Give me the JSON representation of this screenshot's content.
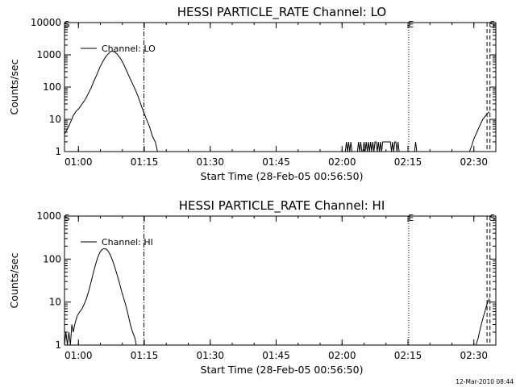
{
  "chart_data": [
    {
      "type": "line",
      "title": "HESSI PARTICLE_RATE Channel: LO",
      "xlabel": "Start Time (28-Feb-05 00:56:50)",
      "ylabel": "Counts/sec",
      "yscale": "log",
      "ylim": [
        1,
        10000
      ],
      "xlim": [
        "00:56:50",
        "02:35:00"
      ],
      "x_ticks": [
        "01:00",
        "01:15",
        "01:30",
        "01:45",
        "02:00",
        "02:15",
        "02:30"
      ],
      "y_ticks": [
        "1",
        "10",
        "100",
        "1000",
        "10000"
      ],
      "legend": "top-left",
      "series": [
        {
          "name": "Channel: LO",
          "color": "#000000",
          "segments": [
            {
              "x": [
                "00:56:50",
                "00:57:30",
                "00:58:10",
                "00:58:50",
                "00:59:30",
                "01:00:10",
                "01:00:50",
                "01:01:30",
                "01:02:10",
                "01:02:50",
                "01:03:30",
                "01:04:10",
                "01:04:50",
                "01:05:30",
                "01:06:10",
                "01:06:50",
                "01:07:30",
                "01:08:10",
                "01:08:50",
                "01:09:30",
                "01:10:10",
                "01:10:50",
                "01:11:30",
                "01:12:10",
                "01:12:50",
                "01:13:30",
                "01:14:10",
                "01:14:50",
                "01:15:30",
                "01:16:10",
                "01:16:50",
                "01:17:30",
                "01:18:00"
              ],
              "y": [
                3.5,
                5,
                8,
                13,
                18,
                22,
                30,
                40,
                60,
                90,
                150,
                240,
                400,
                600,
                850,
                1100,
                1300,
                1250,
                1050,
                800,
                550,
                350,
                220,
                140,
                90,
                55,
                30,
                17,
                10,
                6,
                3,
                2,
                1
              ]
            },
            {
              "x": [
                "02:00:45",
                "02:01:00",
                "02:01:15",
                "02:01:30",
                "02:01:45",
                "02:02:00",
                "02:02:15",
                "02:02:30",
                "02:03:30",
                "02:03:45",
                "02:04:00",
                "02:04:15",
                "02:04:30",
                "02:04:45",
                "02:05:00",
                "02:05:15",
                "02:05:30",
                "02:05:45",
                "02:06:00",
                "02:06:15",
                "02:06:30",
                "02:06:45",
                "02:07:00",
                "02:07:15",
                "02:07:30",
                "02:07:45",
                "02:08:00",
                "02:08:15",
                "02:08:30",
                "02:08:45",
                "02:09:00",
                "02:09:15",
                "02:09:30",
                "02:09:45",
                "02:10:00",
                "02:10:15",
                "02:10:30",
                "02:10:45",
                "02:11:00",
                "02:11:15",
                "02:11:30",
                "02:11:45",
                "02:12:00",
                "02:12:15",
                "02:12:30",
                "02:12:45",
                "02:13:00",
                "02:13:15",
                "02:13:30"
              ],
              "y": [
                1,
                2,
                1,
                2,
                1,
                2,
                1,
                1,
                1,
                2,
                1,
                2,
                1,
                1,
                2,
                1,
                2,
                1,
                2,
                1,
                2,
                1,
                2,
                1,
                2,
                2,
                1,
                2,
                1,
                2,
                1,
                2,
                2,
                2,
                2,
                2,
                2,
                2,
                2,
                1,
                2,
                1,
                2,
                2,
                1,
                2,
                1,
                1,
                1
              ]
            },
            {
              "x": [
                "02:16:30",
                "02:16:45",
                "02:17:00"
              ],
              "y": [
                1,
                2,
                1
              ]
            },
            {
              "x": [
                "02:29:00",
                "02:29:30",
                "02:30:00",
                "02:30:30",
                "02:31:00",
                "02:31:30",
                "02:32:00",
                "02:32:30",
                "02:33:00",
                "02:33:30"
              ],
              "y": [
                1,
                1.5,
                2.5,
                3.5,
                5,
                7,
                10,
                12,
                15,
                17
              ]
            }
          ]
        }
      ],
      "annotations": [
        {
          "label": "S",
          "x": "00:56:50",
          "style": "none"
        },
        {
          "label": "",
          "x": "01:14:55",
          "style": "dash-dot"
        },
        {
          "label": "E",
          "x": "02:15:10",
          "style": "dotted"
        },
        {
          "label": "",
          "x": "02:33:00",
          "style": "dashed"
        },
        {
          "label": "S",
          "x": "02:33:40",
          "style": "dashed"
        }
      ]
    },
    {
      "type": "line",
      "title": "HESSI PARTICLE_RATE Channel: HI",
      "xlabel": "Start Time (28-Feb-05 00:56:50)",
      "ylabel": "Counts/sec",
      "yscale": "log",
      "ylim": [
        1,
        1000
      ],
      "xlim": [
        "00:56:50",
        "02:35:00"
      ],
      "x_ticks": [
        "01:00",
        "01:15",
        "01:30",
        "01:45",
        "02:00",
        "02:15",
        "02:30"
      ],
      "y_ticks": [
        "1",
        "10",
        "100",
        "1000"
      ],
      "legend": "top-left",
      "series": [
        {
          "name": "Channel: HI",
          "color": "#000000",
          "segments": [
            {
              "x": [
                "00:56:50",
                "00:57:10",
                "00:57:30",
                "00:57:50",
                "00:58:10",
                "00:58:30",
                "00:58:50",
                "00:59:10",
                "00:59:30",
                "00:59:50",
                "01:00:20",
                "01:00:50",
                "01:01:20",
                "01:01:50",
                "01:02:20",
                "01:02:50",
                "01:03:20",
                "01:03:50",
                "01:04:20",
                "01:04:50",
                "01:05:20",
                "01:05:50",
                "01:06:20",
                "01:06:50",
                "01:07:20",
                "01:07:50",
                "01:08:20",
                "01:08:50",
                "01:09:20",
                "01:09:50",
                "01:10:20",
                "01:10:50",
                "01:11:20",
                "01:11:50",
                "01:12:20",
                "01:12:50",
                "01:13:10"
              ],
              "y": [
                1,
                2,
                1,
                2,
                1,
                3,
                2,
                3,
                4,
                5,
                6,
                7,
                9,
                12,
                18,
                28,
                45,
                70,
                105,
                140,
                165,
                175,
                170,
                150,
                120,
                90,
                62,
                42,
                28,
                18,
                12,
                8,
                5,
                3,
                2,
                1.5,
                1
              ]
            },
            {
              "x": [
                "02:30:30",
                "02:31:00",
                "02:31:30",
                "02:32:00",
                "02:32:30",
                "02:33:00",
                "02:33:30"
              ],
              "y": [
                1,
                1.5,
                2.5,
                4,
                6,
                9,
                12
              ]
            }
          ]
        }
      ],
      "annotations": [
        {
          "label": "S",
          "x": "00:56:50",
          "style": "none"
        },
        {
          "label": "",
          "x": "01:14:55",
          "style": "dash-dot"
        },
        {
          "label": "E",
          "x": "02:15:10",
          "style": "dotted"
        },
        {
          "label": "",
          "x": "02:33:00",
          "style": "dashed"
        },
        {
          "label": "S",
          "x": "02:33:40",
          "style": "dashed"
        }
      ]
    }
  ],
  "footer": {
    "timestamp": "12-Mar-2010 08:44"
  }
}
